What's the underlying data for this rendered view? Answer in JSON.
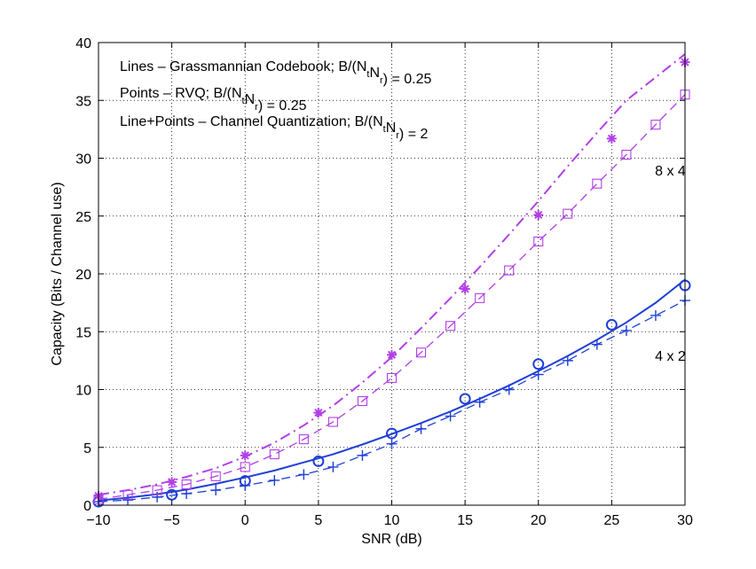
{
  "chart_data": {
    "type": "line",
    "title": "",
    "xlabel": "SNR (dB)",
    "ylabel": "Capacity (Bits / Channel use)",
    "xlim": [
      -10,
      30
    ],
    "ylim": [
      0,
      40
    ],
    "xticks": [
      -10,
      -5,
      0,
      5,
      10,
      15,
      20,
      25,
      30
    ],
    "yticks": [
      0,
      5,
      10,
      15,
      20,
      25,
      30,
      35,
      40
    ],
    "xtick_labels": [
      "−10",
      "−5",
      "0",
      "5",
      "10",
      "15",
      "20",
      "25",
      "30"
    ],
    "ytick_labels": [
      "0",
      "5",
      "10",
      "15",
      "20",
      "25",
      "30",
      "35",
      "40"
    ],
    "grid": true,
    "legend_text": [
      {
        "prefix": "Lines – Grassmannian Codebook; B/(N",
        "sub1": "t",
        "mid": "N",
        "sub2": "r",
        "suffix": ") = 0.25"
      },
      {
        "prefix": "Points – RVQ; B/(N",
        "sub1": "t",
        "mid": "N",
        "sub2": "r",
        "suffix": ") = 0.25"
      },
      {
        "prefix": "Line+Points – Channel Quantization; B/(N",
        "sub1": "t",
        "mid": "N",
        "sub2": "r",
        "suffix": ") = 2"
      }
    ],
    "annotations": [
      {
        "text": "8 x 4",
        "x": 29,
        "y": 28.5
      },
      {
        "text": "4 x 2",
        "x": 29,
        "y": 12.5
      }
    ],
    "colors": {
      "blue": "#1f3fd6",
      "magenta": "#b23fe8"
    },
    "series": [
      {
        "style": "solid",
        "marker": "none",
        "color": "#1f3fd6",
        "x": [
          -10,
          -8,
          -6,
          -4,
          -2,
          0,
          2,
          4,
          6,
          8,
          10,
          12,
          14,
          16,
          18,
          20,
          22,
          24,
          26,
          28,
          30
        ],
        "y": [
          0.4,
          0.65,
          0.95,
          1.35,
          1.85,
          2.4,
          3.0,
          3.7,
          4.4,
          5.25,
          6.15,
          7.1,
          8.1,
          9.2,
          10.35,
          11.6,
          12.9,
          14.3,
          15.8,
          17.5,
          19.5
        ]
      },
      {
        "style": "none",
        "marker": "circle",
        "color": "#1f3fd6",
        "x": [
          -10,
          -5,
          0,
          5,
          10,
          15,
          20,
          25,
          30
        ],
        "y": [
          0.3,
          0.9,
          2.1,
          3.8,
          6.2,
          9.2,
          12.2,
          15.6,
          19.0
        ]
      },
      {
        "style": "dashed",
        "marker": "plus",
        "color": "#1f3fd6",
        "x": [
          -10,
          -8,
          -6,
          -4,
          -2,
          0,
          2,
          4,
          6,
          8,
          10,
          12,
          14,
          16,
          18,
          20,
          22,
          24,
          26,
          28,
          30
        ],
        "y": [
          0.3,
          0.45,
          0.7,
          1.0,
          1.3,
          1.7,
          2.15,
          2.65,
          3.3,
          4.3,
          5.3,
          6.6,
          7.7,
          8.9,
          10.0,
          11.3,
          12.5,
          13.9,
          15.1,
          16.4,
          17.7
        ]
      },
      {
        "style": "dashdot",
        "marker": "none",
        "color": "#b23fe8",
        "x": [
          -10,
          -8,
          -6,
          -4,
          -2,
          0,
          2,
          4,
          6,
          8,
          10,
          12,
          14,
          16,
          18,
          20,
          22,
          24,
          26,
          28,
          30
        ],
        "y": [
          0.9,
          1.3,
          1.8,
          2.45,
          3.2,
          4.2,
          5.4,
          6.9,
          8.6,
          10.6,
          12.8,
          15.3,
          17.9,
          20.6,
          23.4,
          26.3,
          29.3,
          32.2,
          35.0,
          37.0,
          39.0
        ]
      },
      {
        "style": "none",
        "marker": "asterisk",
        "color": "#b23fe8",
        "x": [
          -10,
          -5,
          0,
          5,
          10,
          15,
          20,
          25,
          30
        ],
        "y": [
          0.8,
          2.0,
          4.3,
          8.0,
          13.0,
          18.7,
          25.1,
          31.7,
          38.3
        ]
      },
      {
        "style": "dashed",
        "marker": "square",
        "color": "#b23fe8",
        "x": [
          -10,
          -8,
          -6,
          -4,
          -2,
          0,
          2,
          4,
          6,
          8,
          10,
          12,
          14,
          16,
          18,
          20,
          22,
          24,
          26,
          28,
          30
        ],
        "y": [
          0.5,
          0.9,
          1.3,
          1.8,
          2.5,
          3.3,
          4.4,
          5.7,
          7.2,
          9.0,
          11.0,
          13.2,
          15.5,
          17.9,
          20.3,
          22.8,
          25.2,
          27.8,
          30.3,
          32.9,
          35.5
        ]
      }
    ]
  }
}
